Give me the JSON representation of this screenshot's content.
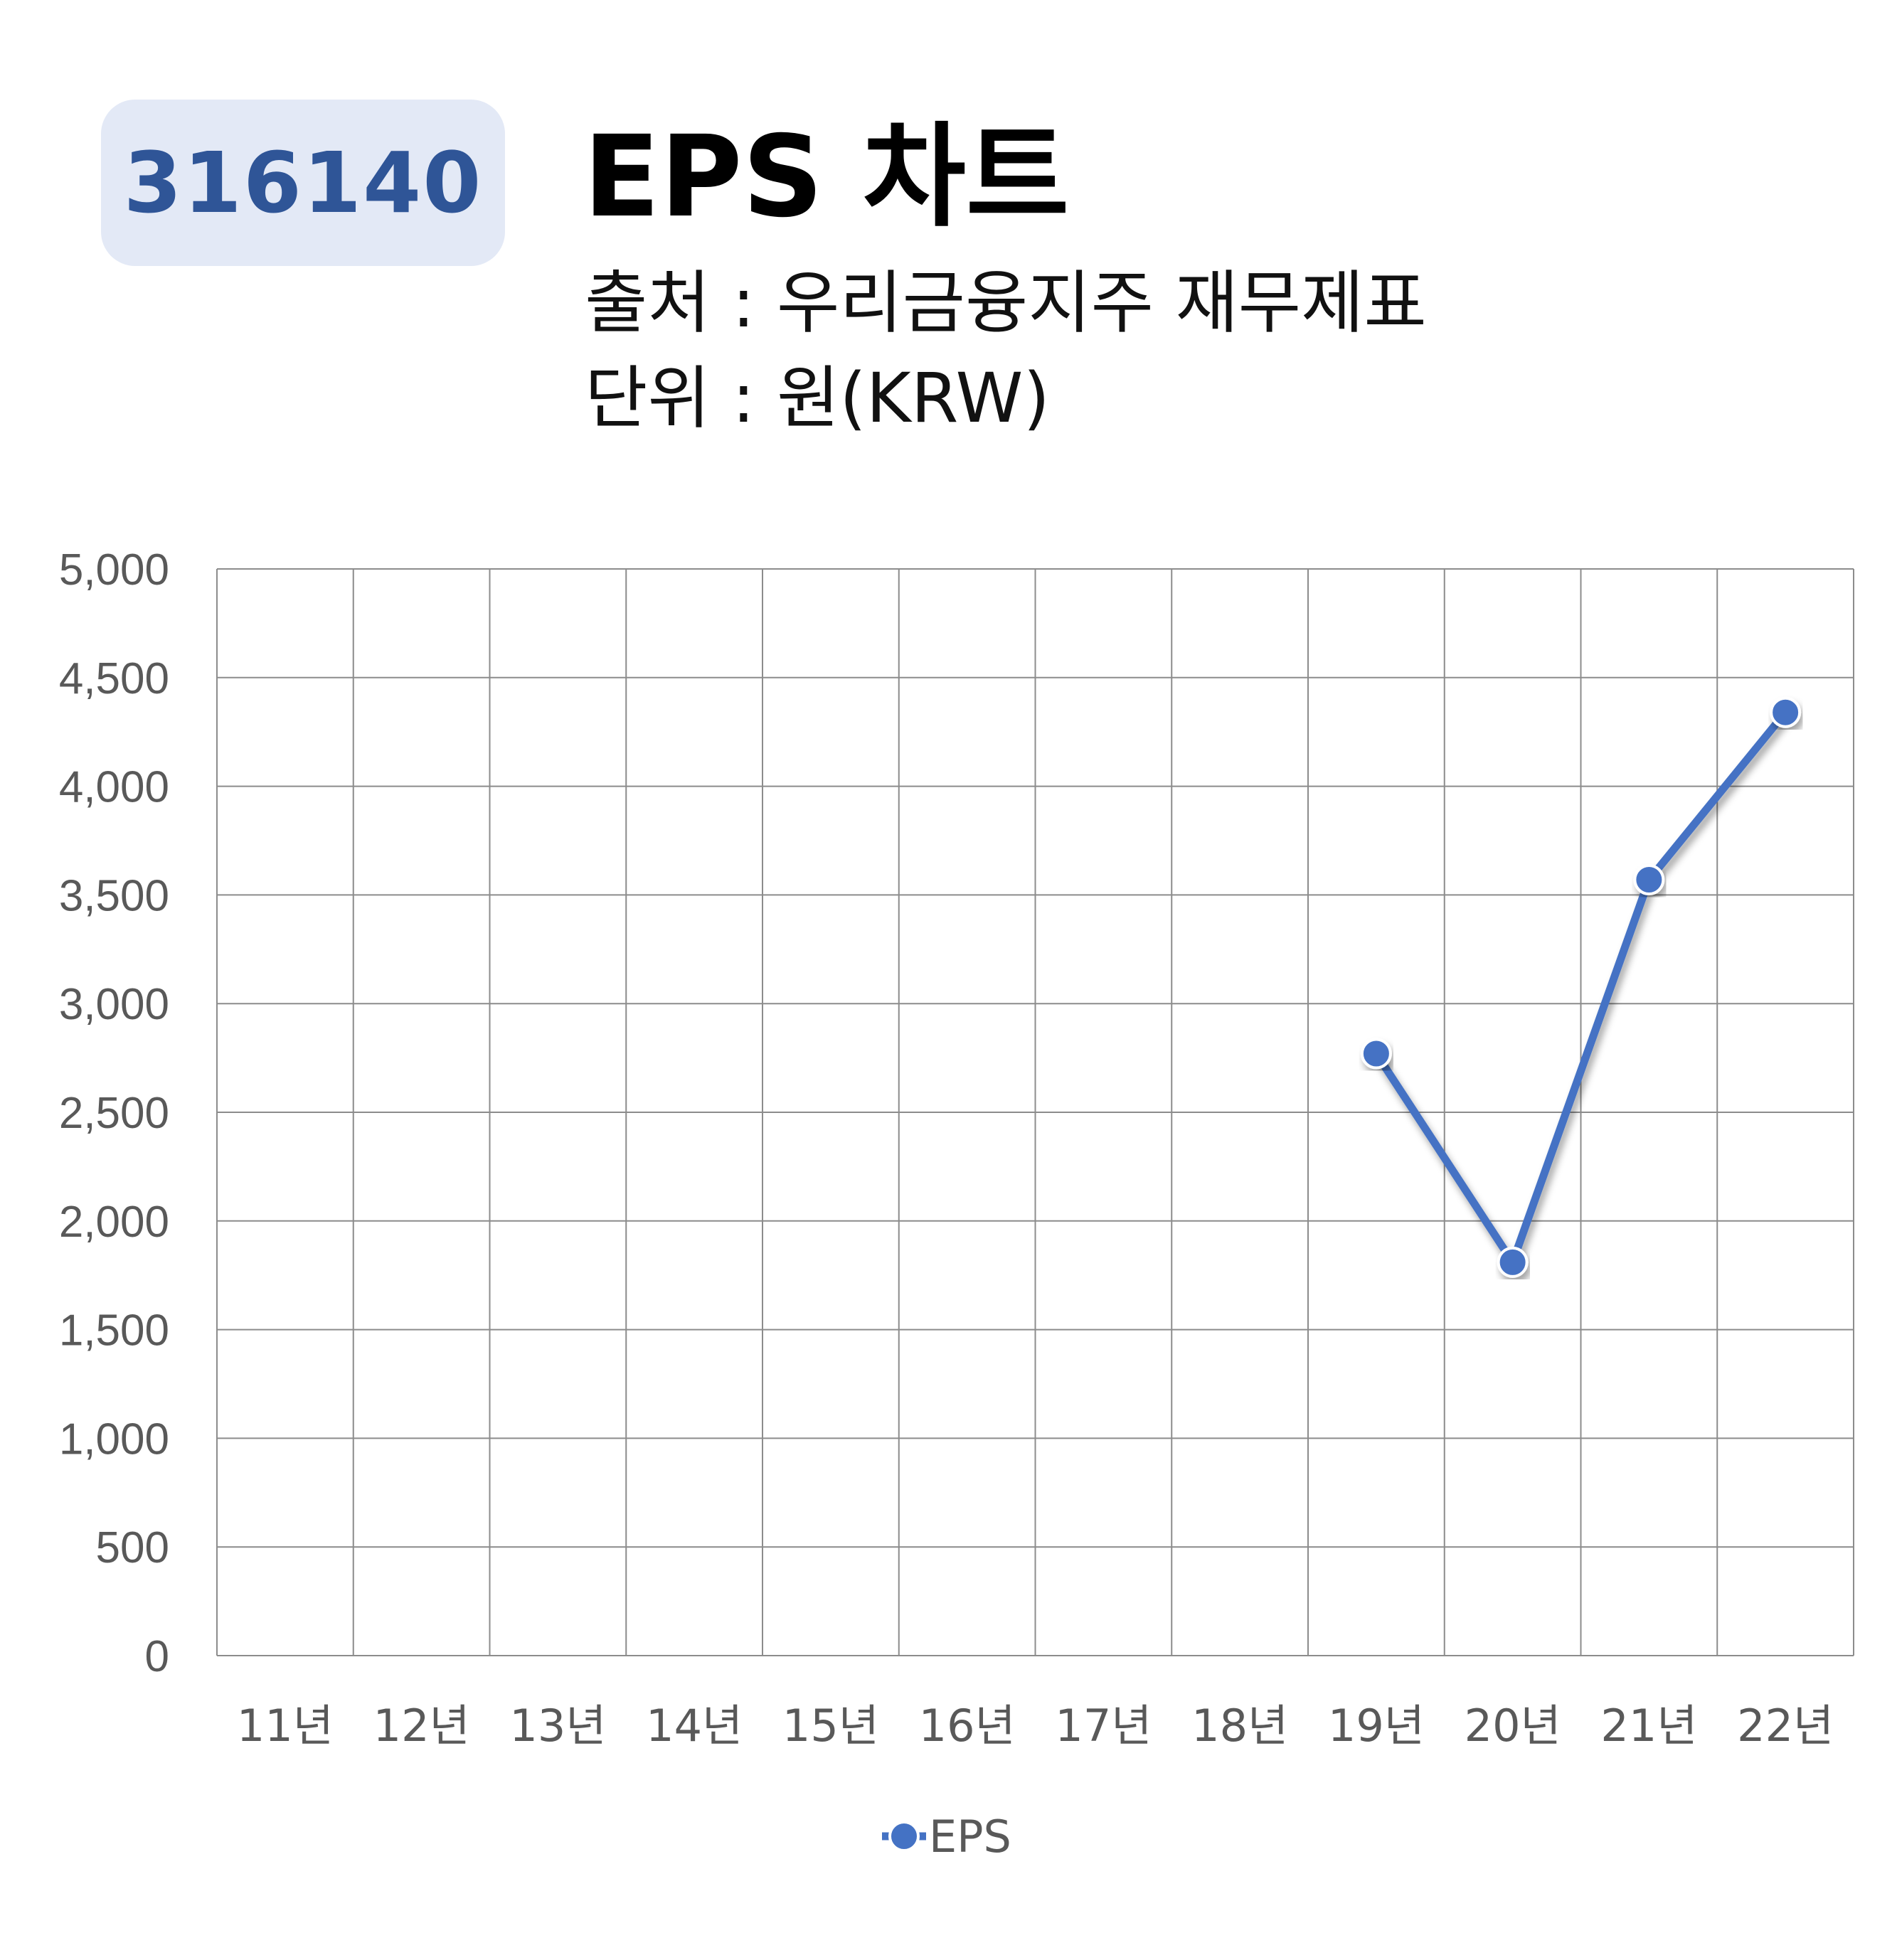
{
  "header": {
    "code": "316140",
    "title": "EPS 차트",
    "source": "출처 : 우리금융지주 재무제표",
    "unit": "단위 : 원(KRW)"
  },
  "colors": {
    "series": "#4472c4",
    "badge_bg": "#e3e9f6",
    "badge_text": "#2f5597",
    "grid": "#8c8c8c"
  },
  "chart_data": {
    "type": "line",
    "title": "EPS 차트",
    "categories": [
      "11년",
      "12년",
      "13년",
      "14년",
      "15년",
      "16년",
      "17년",
      "18년",
      "19년",
      "20년",
      "21년",
      "22년"
    ],
    "series": [
      {
        "name": "EPS",
        "values": [
          null,
          null,
          null,
          null,
          null,
          null,
          null,
          null,
          2770,
          1810,
          3570,
          4340
        ]
      }
    ],
    "ylim": [
      0,
      5000
    ],
    "yticks": [
      0,
      500,
      1000,
      1500,
      2000,
      2500,
      3000,
      3500,
      4000,
      4500,
      5000
    ],
    "ytick_labels": [
      "0",
      "500",
      "1,000",
      "1,500",
      "2,000",
      "2,500",
      "3,000",
      "3,500",
      "4,000",
      "4,500",
      "5,000"
    ],
    "grid": true,
    "legend": "bottom"
  }
}
